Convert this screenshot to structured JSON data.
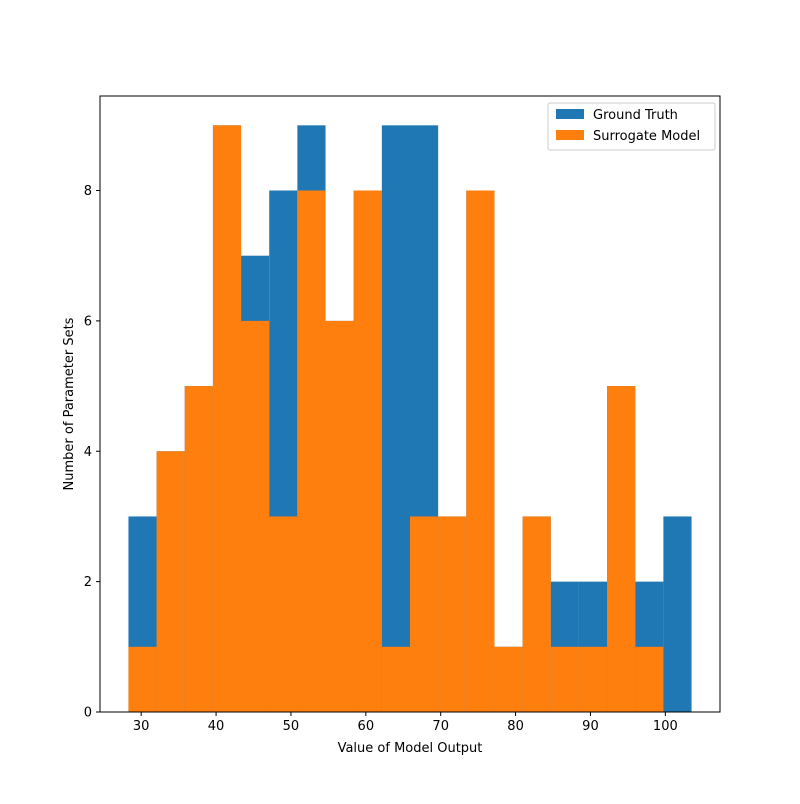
{
  "chart_data": {
    "type": "bar",
    "subtype": "histogram-overlay",
    "title": "",
    "xlabel": "Value of Model Output",
    "ylabel": "Number of Parameter Sets",
    "xlim": [
      24.5,
      107.3
    ],
    "ylim": [
      0,
      9.45
    ],
    "xticks": [
      30,
      40,
      50,
      60,
      70,
      80,
      90,
      100
    ],
    "yticks": [
      0,
      2,
      4,
      6,
      8
    ],
    "grid": false,
    "legend_position": "top-right",
    "bin_edges": [
      28.3,
      32.06,
      35.82,
      39.58,
      43.34,
      47.1,
      50.86,
      54.62,
      58.38,
      62.14,
      65.9,
      69.66,
      73.42,
      77.18,
      80.94,
      84.7,
      88.46,
      92.22,
      95.98,
      99.74,
      103.5
    ],
    "series": [
      {
        "name": "Ground Truth",
        "color": "#1f77b4",
        "values": [
          3,
          4,
          5,
          9,
          7,
          8,
          9,
          6,
          8,
          9,
          9,
          3,
          8,
          1,
          3,
          2,
          2,
          5,
          2,
          3
        ]
      },
      {
        "name": "Surrogate Model",
        "color": "#ff7f0e",
        "values": [
          1,
          4,
          5,
          9,
          6,
          3,
          8,
          6,
          8,
          1,
          3,
          3,
          8,
          1,
          3,
          1,
          1,
          5,
          1,
          0
        ]
      }
    ]
  }
}
